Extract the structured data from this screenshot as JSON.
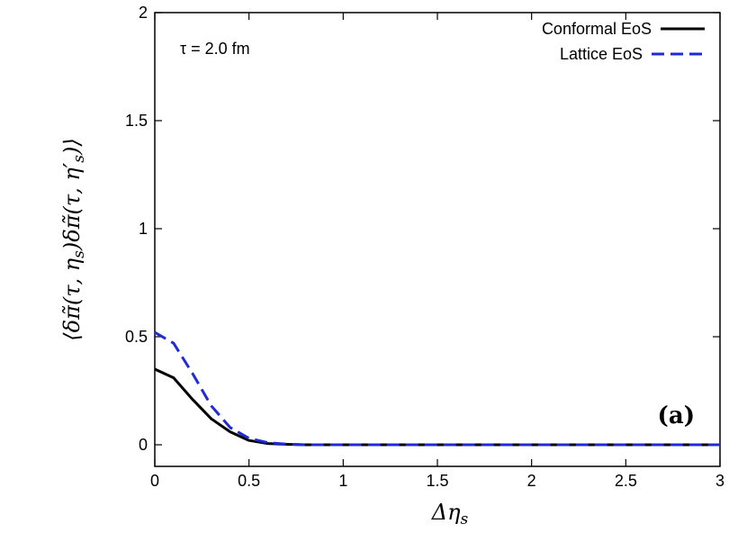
{
  "chart_data": {
    "type": "line",
    "title": "",
    "xlabel": "Δη_s",
    "ylabel": "⟨δπ̃(τ,η_s)δπ̃(τ,η′_s)⟩",
    "xlim": [
      0,
      3
    ],
    "ylim": [
      -0.1,
      2
    ],
    "x_ticks": [
      0,
      0.5,
      1,
      1.5,
      2,
      2.5,
      3
    ],
    "x_tick_labels": [
      "0",
      "0.5",
      "1",
      "1.5",
      "2",
      "2.5",
      "3"
    ],
    "y_ticks": [
      0,
      0.5,
      1,
      1.5,
      2
    ],
    "y_tick_labels": [
      "0",
      "0.5",
      "1",
      "1.5",
      "2"
    ],
    "grid": false,
    "legend_position": "top-right",
    "annotation": "τ = 2.0 fm",
    "panel_label": "(a)",
    "series": [
      {
        "name": "Conformal EoS",
        "color": "#000000",
        "style": "solid",
        "x": [
          0,
          0.1,
          0.2,
          0.3,
          0.4,
          0.5,
          0.6,
          0.7,
          0.8,
          1.0,
          1.5,
          2.0,
          2.5,
          3.0
        ],
        "y": [
          0.35,
          0.31,
          0.21,
          0.12,
          0.06,
          0.02,
          0.006,
          0.002,
          0.0,
          0.0,
          0.0,
          0.0,
          0.0,
          0.0
        ]
      },
      {
        "name": "Lattice EoS",
        "color": "#1f2bd6",
        "style": "dashed",
        "x": [
          0,
          0.1,
          0.2,
          0.3,
          0.4,
          0.5,
          0.6,
          0.7,
          0.8,
          1.0,
          1.5,
          2.0,
          2.5,
          3.0
        ],
        "y": [
          0.52,
          0.47,
          0.33,
          0.18,
          0.08,
          0.03,
          0.01,
          0.003,
          0.0,
          0.0,
          0.0,
          0.0,
          0.0,
          0.0
        ]
      }
    ]
  }
}
